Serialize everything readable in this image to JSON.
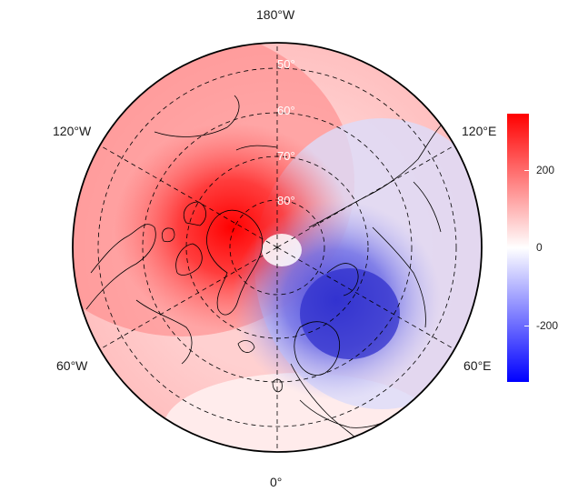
{
  "map": {
    "projection": "north-polar-stereographic",
    "longitude_labels": {
      "top": "180°W",
      "upper_left": "120°W",
      "upper_right": "120°E",
      "lower_left": "60°W",
      "lower_right": "60°E",
      "bottom": "0°"
    },
    "latitude_labels": [
      "50°",
      "60°",
      "70°",
      "80°"
    ],
    "field": {
      "positive_center_description": "strong positive anomaly over Greenland / Canadian Arctic",
      "negative_center_description": "strong negative anomaly over Scandinavia / Barents Sea"
    }
  },
  "colorbar": {
    "ticks": [
      "200",
      "0",
      "-200"
    ],
    "tick_values": [
      200,
      0,
      -200
    ],
    "range": [
      -340,
      340
    ],
    "colors": {
      "high": "#ff0000",
      "mid": "#ffffff",
      "low": "#0000ff"
    }
  }
}
